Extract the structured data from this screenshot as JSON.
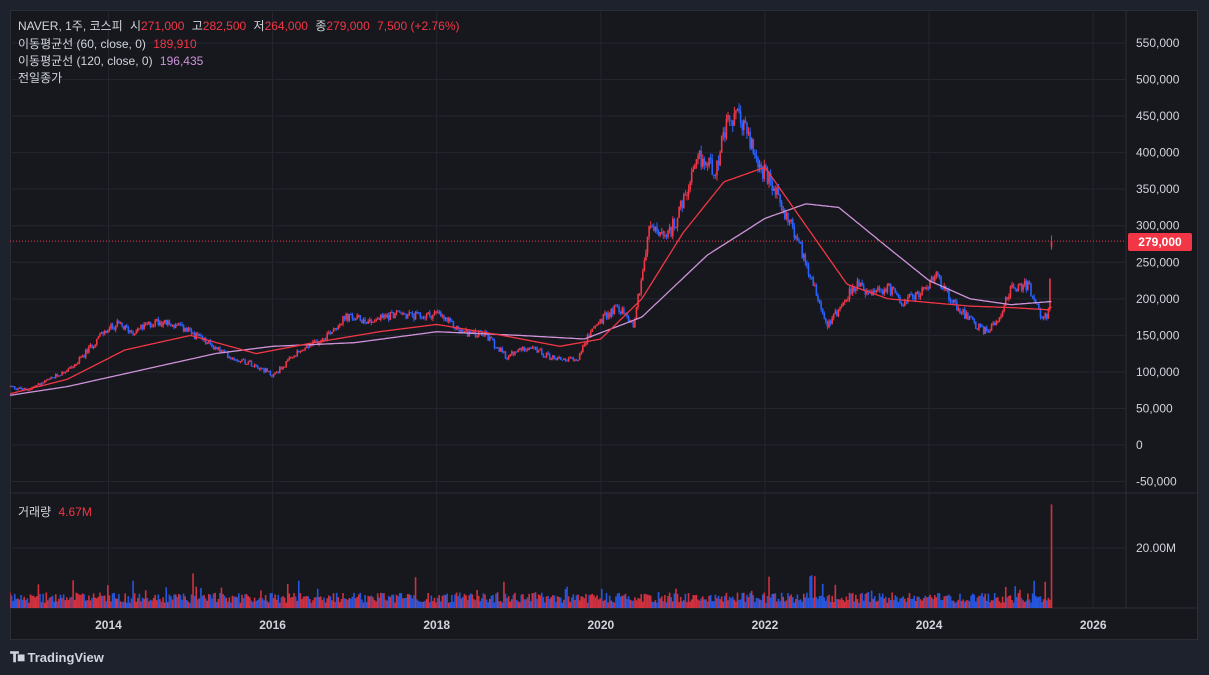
{
  "header": {
    "symbol": "NAVER, 1주, 코스피",
    "open_label": "시",
    "open": "271,000",
    "high_label": "고",
    "high": "282,500",
    "low_label": "저",
    "low": "264,000",
    "close_label": "종",
    "close": "279,000",
    "change": "7,500 (+2.76%)"
  },
  "indicators": {
    "ma60_label": "이동평균선 (60, close, 0)",
    "ma60_value": "189,910",
    "ma120_label": "이동평균선 (120, close, 0)",
    "ma120_value": "196,435",
    "prev_close_label": "전일종가"
  },
  "volume_pane": {
    "label": "거래량",
    "value": "4.67M",
    "axis_label": "20.00M"
  },
  "price_tag": "279,000",
  "footer": {
    "brand": "TradingView"
  },
  "colors": {
    "up": "#f23645",
    "down": "#2962ff",
    "ma60": "#f23645",
    "ma120": "#ce93d8"
  },
  "chart_data": {
    "type": "line",
    "title": "NAVER, 1주, 코스피",
    "x_ticks": [
      "2014",
      "2016",
      "2018",
      "2020",
      "2022",
      "2024",
      "2026"
    ],
    "y_ticks": [
      "550,000",
      "500,000",
      "450,000",
      "400,000",
      "350,000",
      "300,000",
      "250,000",
      "200,000",
      "150,000",
      "100,000",
      "50,000",
      "0",
      "-50,000"
    ],
    "ylim": [
      -50000,
      580000
    ],
    "xlim": [
      2012.8,
      2026.4
    ],
    "series": [
      {
        "name": "NAVER close (approx.)",
        "x": [
          2012.8,
          2013.0,
          2013.3,
          2013.6,
          2013.9,
          2014.1,
          2014.3,
          2014.6,
          2014.9,
          2015.2,
          2015.5,
          2015.8,
          2016.0,
          2016.3,
          2016.6,
          2016.9,
          2017.2,
          2017.5,
          2017.8,
          2018.0,
          2018.3,
          2018.6,
          2018.85,
          2019.1,
          2019.4,
          2019.7,
          2019.9,
          2020.1,
          2020.2,
          2020.4,
          2020.6,
          2020.8,
          2021.0,
          2021.2,
          2021.4,
          2021.55,
          2021.7,
          2021.9,
          2022.0,
          2022.2,
          2022.4,
          2022.6,
          2022.75,
          2022.9,
          2023.1,
          2023.3,
          2023.5,
          2023.7,
          2023.9,
          2024.1,
          2024.3,
          2024.55,
          2024.7,
          2024.85,
          2025.0,
          2025.2,
          2025.35,
          2025.45,
          2025.5
        ],
        "values": [
          80000,
          75000,
          90000,
          110000,
          150000,
          165000,
          155000,
          170000,
          160000,
          140000,
          120000,
          110000,
          95000,
          125000,
          145000,
          175000,
          170000,
          180000,
          175000,
          180000,
          155000,
          150000,
          120000,
          135000,
          120000,
          115000,
          160000,
          180000,
          190000,
          165000,
          300000,
          280000,
          330000,
          390000,
          380000,
          440000,
          450000,
          390000,
          370000,
          330000,
          280000,
          220000,
          165000,
          185000,
          220000,
          205000,
          215000,
          195000,
          210000,
          230000,
          195000,
          165000,
          155000,
          175000,
          215000,
          220000,
          180000,
          175000,
          279000
        ]
      },
      {
        "name": "이동평균선 (60, close, 0)",
        "x": [
          2012.8,
          2013.5,
          2014.2,
          2015.0,
          2015.8,
          2016.5,
          2017.3,
          2018.0,
          2018.8,
          2019.5,
          2020.0,
          2020.5,
          2021.0,
          2021.5,
          2022.0,
          2022.5,
          2023.0,
          2023.5,
          2024.0,
          2024.5,
          2025.0,
          2025.45,
          2025.5
        ],
        "values": [
          70000,
          90000,
          130000,
          150000,
          125000,
          140000,
          155000,
          165000,
          150000,
          135000,
          145000,
          200000,
          290000,
          360000,
          380000,
          300000,
          220000,
          200000,
          195000,
          190000,
          188000,
          185000,
          189910
        ]
      },
      {
        "name": "이동평균선 (120, close, 0)",
        "x": [
          2012.8,
          2013.5,
          2014.5,
          2015.3,
          2016.0,
          2017.0,
          2018.0,
          2019.0,
          2019.8,
          2020.5,
          2021.3,
          2022.0,
          2022.5,
          2022.9,
          2023.5,
          2024.0,
          2024.5,
          2025.0,
          2025.5
        ],
        "values": [
          68000,
          80000,
          105000,
          125000,
          135000,
          140000,
          155000,
          150000,
          145000,
          175000,
          260000,
          310000,
          330000,
          325000,
          270000,
          225000,
          200000,
          192000,
          196435
        ]
      }
    ],
    "volume": {
      "label": "거래량",
      "last": "4.67M",
      "axis_ticks": [
        "20.00M"
      ]
    }
  }
}
